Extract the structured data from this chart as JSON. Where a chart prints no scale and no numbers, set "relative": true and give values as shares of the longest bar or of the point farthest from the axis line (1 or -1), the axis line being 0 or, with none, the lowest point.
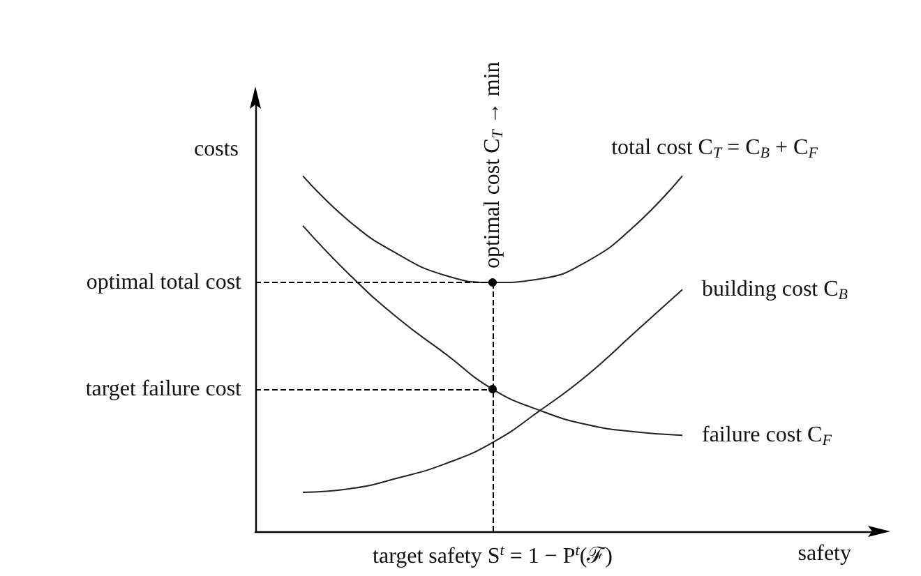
{
  "chart_data": {
    "type": "line",
    "relative": true,
    "xlabel": "safety",
    "ylabel": "costs",
    "categories": [
      null,
      null,
      null,
      null,
      null,
      null,
      null,
      null,
      null,
      null,
      null,
      null,
      null,
      null
    ],
    "series": [
      {
        "name": "total cost C$_{T}$ = C$_{B}$ + C$_{F}$",
        "color": "#222222",
        "values": [
          null,
          1,
          0.87,
          0.78,
          0.72,
          0.7,
          0.71,
          0.76,
          0.86,
          1,
          null,
          null,
          null,
          null
        ]
      },
      {
        "name": "building cost C$_{B}$",
        "color": "#222222",
        "values": [
          null,
          0.11,
          0.12,
          0.15,
          0.19,
          0.25,
          0.34,
          0.44,
          0.56,
          0.68,
          null,
          null,
          null,
          null
        ]
      },
      {
        "name": "failure cost C$_{F}$",
        "color": "#222222",
        "values": [
          null,
          0.86,
          0.72,
          0.6,
          0.5,
          0.4,
          0.34,
          0.3,
          0.28,
          0.27,
          null,
          null,
          null,
          null
        ]
      }
    ],
    "ref_lines": [
      {
        "axis": "y",
        "value": 0.7,
        "label": "optimal total cost",
        "line_style": "dashed",
        "color": "#000000"
      },
      {
        "axis": "y",
        "value": 0.4,
        "label": "target failure cost",
        "line_style": "dashed",
        "color": "#000000"
      }
    ],
    "annotations": [
      "optimal cost C$_{T}$ → min",
      "target safety S$^{t}$ = 1 − P$^{t}$(ℱ)"
    ]
  }
}
